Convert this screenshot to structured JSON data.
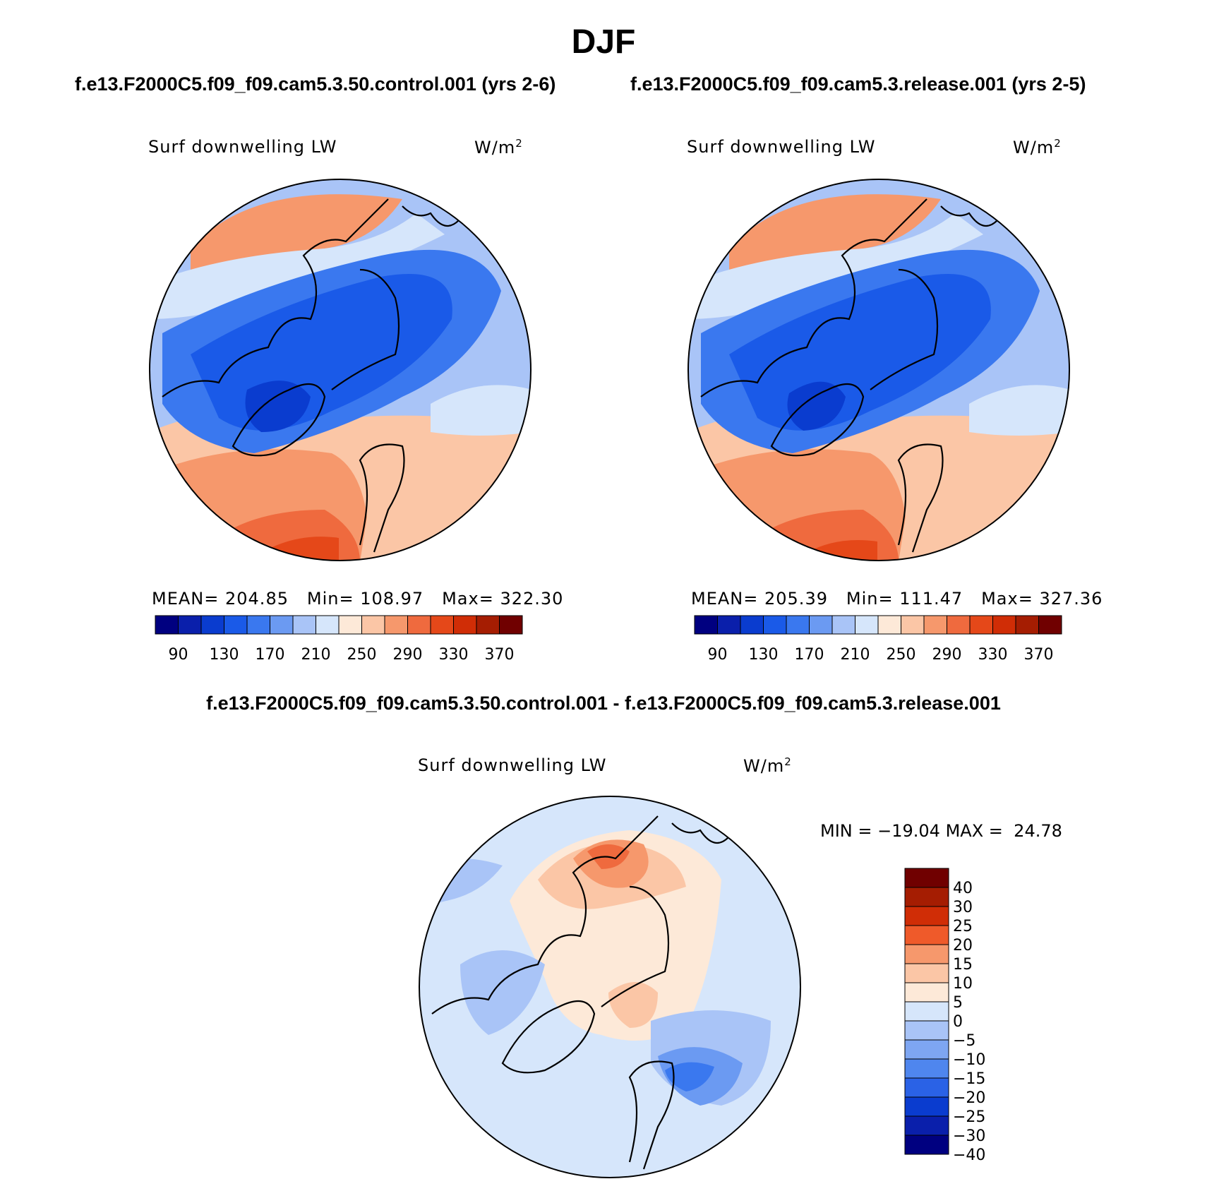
{
  "season": "DJF",
  "palette": {
    "abs": [
      "#000080",
      "#0a1fab",
      "#0a3ccf",
      "#1a5ae8",
      "#3a78ef",
      "#6b9af2",
      "#a9c4f7",
      "#d6e6fb",
      "#fde9d8",
      "#fbc6a6",
      "#f6986c",
      "#ef6a3e",
      "#e54819",
      "#d02d06",
      "#a51d02",
      "#700000"
    ],
    "diff": [
      "#700000",
      "#a51d02",
      "#d02d06",
      "#ef5a2a",
      "#f6986c",
      "#fbc6a6",
      "#fde9d8",
      "#d6e6fb",
      "#a9c4f7",
      "#7ea6f2",
      "#4f86ee",
      "#2a62e6",
      "#0a3ccf",
      "#0a1fab",
      "#000080"
    ]
  },
  "panels": {
    "control": {
      "case_title": "f.e13.F2000C5.f09_f09.cam5.3.50.control.001 (yrs 2-6)",
      "variable": "Surf downwelling LW",
      "units": "W/m",
      "units_exp": "2",
      "stats": {
        "mean_label": "MEAN=",
        "mean": "204.85",
        "min_label": "Min=",
        "min": "108.97",
        "max_label": "Max=",
        "max": "322.30"
      }
    },
    "release": {
      "case_title": "f.e13.F2000C5.f09_f09.cam5.3.release.001 (yrs 2-5)",
      "variable": "Surf downwelling LW",
      "units": "W/m",
      "units_exp": "2",
      "stats": {
        "mean_label": "MEAN=",
        "mean": "205.39",
        "min_label": "Min=",
        "min": "111.47",
        "max_label": "Max=",
        "max": "327.36"
      }
    },
    "difference": {
      "case_title": "f.e13.F2000C5.f09_f09.cam5.3.50.control.001 - f.e13.F2000C5.f09_f09.cam5.3.release.001",
      "variable": "Surf downwelling LW",
      "units": "W/m",
      "units_exp": "2",
      "stats": {
        "min_label": "MIN =",
        "min": "−19.04",
        "max_label": "MAX =",
        "max": "24.78"
      }
    }
  },
  "colorbar_abs_labels": [
    "90",
    "130",
    "170",
    "210",
    "250",
    "290",
    "330",
    "370"
  ],
  "colorbar_diff_labels": [
    "40",
    "30",
    "25",
    "20",
    "15",
    "10",
    "5",
    "0",
    "−5",
    "−10",
    "−15",
    "−20",
    "−25",
    "−30",
    "−40"
  ]
}
